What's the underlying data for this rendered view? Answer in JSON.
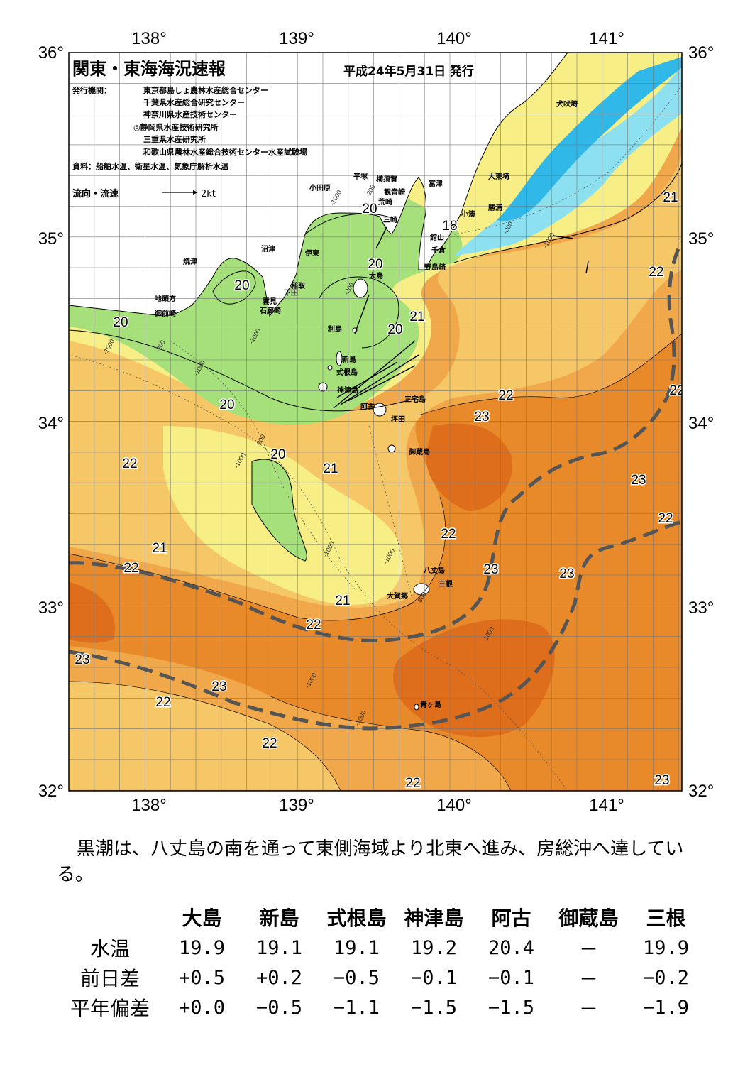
{
  "map": {
    "title": "関東・東海海況速報",
    "date": "平成24年5月31日 発行",
    "publisher_label": "発行機関：",
    "publishers": [
      "東京都島しょ農林水産総合センター",
      "千葉県水産総合研究センター",
      "神奈川県水産技術センター",
      "◎静岡県水産技術研究所",
      "三重県水産研究所",
      "和歌山県農林水産総合技術センター水産試験場"
    ],
    "source": "資料：船舶水温、衛星水温、気象庁解析水温",
    "legend_current": "流向・流速",
    "legend_speed": "2kt",
    "lon_labels": [
      "138°",
      "139°",
      "140°",
      "141°"
    ],
    "lat_labels": [
      "36°",
      "35°",
      "34°",
      "33°",
      "32°"
    ],
    "colors": {
      "t17": "#30b8e8",
      "t18": "#8ce0f0",
      "t19": "#a6e07a",
      "t20": "#f7ef86",
      "t21": "#f6c766",
      "t22": "#f0a84a",
      "t23": "#e98a2a",
      "t24": "#de6e1c",
      "kuroshio": "#555555",
      "land": "#ffffff"
    },
    "places": [
      "犬吠埼",
      "大東埼",
      "勝浦",
      "小湊",
      "館山",
      "千倉",
      "野島崎",
      "富津",
      "観音崎",
      "横須賀",
      "平塚",
      "小田原",
      "荒崎",
      "三崎",
      "沼津",
      "焼津",
      "伊東",
      "稲取",
      "下田",
      "雲見",
      "石廊崎",
      "地頭方",
      "御前崎",
      "大島",
      "利島",
      "新島",
      "式根島",
      "神津島",
      "阿古",
      "三宅島",
      "坪田",
      "御蔵島",
      "八丈島",
      "三根",
      "大賀郷",
      "青ヶ島"
    ],
    "isotherm_labels": [
      "18",
      "20",
      "20",
      "20",
      "20",
      "20",
      "20",
      "20",
      "21",
      "21",
      "21",
      "21",
      "21",
      "22",
      "22",
      "22",
      "22",
      "22",
      "22",
      "22",
      "22",
      "22",
      "22",
      "22",
      "23",
      "23",
      "23",
      "23",
      "23",
      "23",
      "23"
    ],
    "depth_labels": [
      "-200",
      "-1000",
      "-200",
      "-200",
      "-1000",
      "-1000",
      "-200",
      "-1000",
      "-1000",
      "-1000",
      "-1000",
      "-1000",
      "-1000",
      "-1000",
      "-1000",
      "-200",
      "-800"
    ]
  },
  "summary": "黒潮は、八丈島の南を通って東側海域より北東へ進み、房総沖へ達している。",
  "table": {
    "columns": [
      "大島",
      "新島",
      "式根島",
      "神津島",
      "阿古",
      "御蔵島",
      "三根"
    ],
    "rows": [
      {
        "label": "水温",
        "values": [
          "19.9",
          "19.1",
          "19.1",
          "19.2",
          "20.4",
          "－",
          "19.9"
        ]
      },
      {
        "label": "前日差",
        "values": [
          "+0.5",
          "+0.2",
          "−0.5",
          "−0.1",
          "−0.1",
          "－",
          "−0.2"
        ]
      },
      {
        "label": "平年偏差",
        "values": [
          "+0.0",
          "−0.5",
          "−1.1",
          "−1.5",
          "−1.5",
          "－",
          "−1.9"
        ]
      }
    ]
  }
}
